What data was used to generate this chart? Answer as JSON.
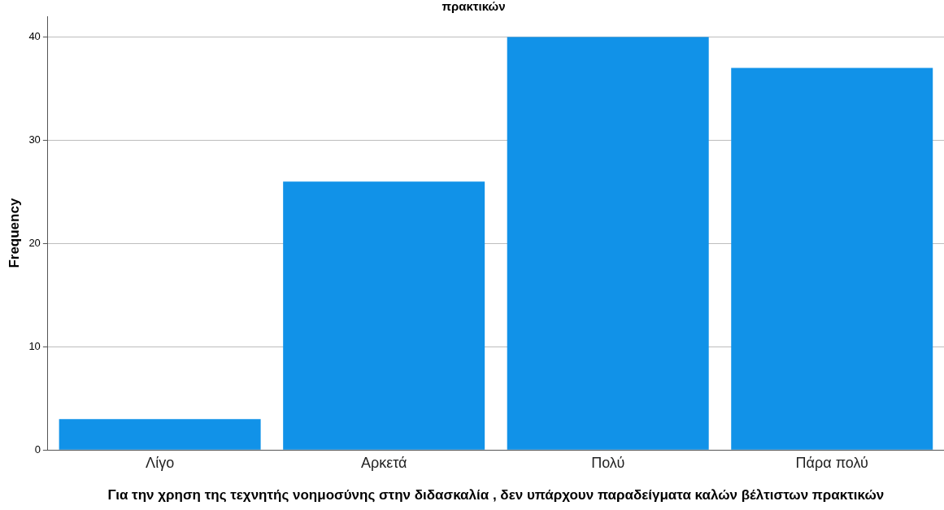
{
  "chart_data": {
    "type": "bar",
    "title": "πρακτικών",
    "categories": [
      "Λίγο",
      "Αρκετά",
      "Πολύ",
      "Πάρα πολύ"
    ],
    "values": [
      3,
      26,
      40,
      37
    ],
    "color": "#1192e8",
    "xlabel": "Για την χρηση της τεχνητής νοημοσύνης στην διδασκαλία , δεν υπάρχουν παραδείγματα καλών βέλτιστων πρακτικών",
    "ylabel": "Frequency",
    "ylim": [
      0,
      42
    ],
    "yticks": [
      0,
      10,
      20,
      30,
      40
    ],
    "grid": "y",
    "legend": false
  }
}
